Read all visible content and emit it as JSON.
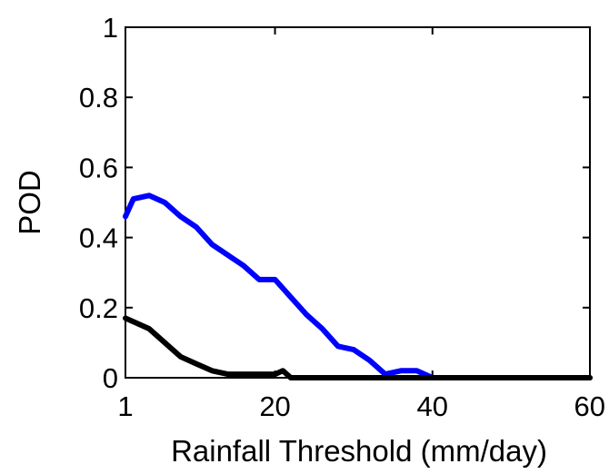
{
  "chart_data": {
    "type": "line",
    "title": "",
    "xlabel": "Rainfall Threshold (mm/day)",
    "ylabel": "POD",
    "xlim": [
      1,
      60
    ],
    "ylim": [
      0,
      1
    ],
    "xticks": [
      1,
      20,
      40,
      60
    ],
    "xtick_labels": [
      "1",
      "20",
      "40",
      "60"
    ],
    "yticks": [
      0,
      0.2,
      0.4,
      0.6,
      0.8,
      1
    ],
    "ytick_labels": [
      "0",
      "0.2",
      "0.4",
      "0.6",
      "0.8",
      "1"
    ],
    "grid": false,
    "legend": "none",
    "series": [
      {
        "color": "#0000ff",
        "x": [
          1,
          2,
          4,
          6,
          8,
          10,
          12,
          14,
          16,
          18,
          20,
          22,
          24,
          26,
          28,
          30,
          32,
          34,
          36,
          38,
          40,
          45,
          50,
          55,
          58,
          60
        ],
        "y": [
          0.46,
          0.51,
          0.52,
          0.5,
          0.46,
          0.43,
          0.38,
          0.35,
          0.32,
          0.28,
          0.28,
          0.23,
          0.18,
          0.14,
          0.09,
          0.08,
          0.05,
          0.01,
          0.02,
          0.02,
          0.0,
          0.0,
          0.0,
          0.0,
          0.0,
          0.0
        ]
      },
      {
        "color": "#000000",
        "x": [
          1,
          2,
          4,
          6,
          8,
          10,
          12,
          14,
          16,
          18,
          20,
          21,
          22,
          24,
          30,
          40,
          50,
          55,
          60
        ],
        "y": [
          0.17,
          0.16,
          0.14,
          0.1,
          0.06,
          0.04,
          0.02,
          0.01,
          0.01,
          0.01,
          0.01,
          0.02,
          0.0,
          0.0,
          0.0,
          0.0,
          0.0,
          0.0,
          0.0
        ]
      }
    ]
  }
}
